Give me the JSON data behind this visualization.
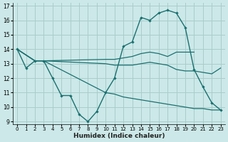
{
  "xlabel": "Humidex (Indice chaleur)",
  "background_color": "#cce8e8",
  "grid_color": "#aacccc",
  "line_color": "#1a7070",
  "xlim": [
    -0.5,
    23.5
  ],
  "ylim": [
    8.8,
    17.2
  ],
  "yticks": [
    9,
    10,
    11,
    12,
    13,
    14,
    15,
    16,
    17
  ],
  "xticks": [
    0,
    1,
    2,
    3,
    4,
    5,
    6,
    7,
    8,
    9,
    10,
    11,
    12,
    13,
    14,
    15,
    16,
    17,
    18,
    19,
    20,
    21,
    22,
    23
  ],
  "main_line": {
    "x": [
      0,
      1,
      2,
      3,
      4,
      5,
      6,
      7,
      8,
      9,
      10,
      11,
      12,
      13,
      14,
      15,
      16,
      17,
      18,
      19,
      20,
      21,
      22,
      23
    ],
    "y": [
      14.0,
      12.7,
      13.2,
      13.2,
      12.0,
      10.8,
      10.8,
      9.5,
      9.0,
      9.7,
      11.0,
      12.0,
      14.2,
      14.5,
      16.2,
      16.0,
      16.5,
      16.7,
      16.5,
      15.5,
      12.6,
      11.4,
      10.3,
      9.8
    ]
  },
  "smooth_line1": {
    "x": [
      0,
      2,
      3,
      10,
      11,
      12,
      13,
      14,
      15,
      16,
      17,
      18,
      19,
      20
    ],
    "y": [
      14.0,
      13.2,
      13.2,
      13.3,
      13.3,
      13.4,
      13.5,
      13.7,
      13.8,
      13.7,
      13.5,
      13.8,
      13.8,
      13.8
    ]
  },
  "smooth_line2": {
    "x": [
      0,
      2,
      3,
      10,
      11,
      12,
      13,
      14,
      15,
      16,
      17,
      18,
      19,
      20,
      21,
      22,
      23
    ],
    "y": [
      14.0,
      13.2,
      13.2,
      13.0,
      12.9,
      12.9,
      12.9,
      13.0,
      13.1,
      13.0,
      12.9,
      12.6,
      12.5,
      12.5,
      12.4,
      12.3,
      12.7
    ]
  },
  "smooth_line3": {
    "x": [
      0,
      2,
      3,
      10,
      11,
      12,
      13,
      14,
      15,
      16,
      17,
      18,
      19,
      20,
      21,
      22,
      23
    ],
    "y": [
      14.0,
      13.2,
      13.2,
      11.0,
      10.9,
      10.7,
      10.6,
      10.5,
      10.4,
      10.3,
      10.2,
      10.1,
      10.0,
      9.9,
      9.9,
      9.8,
      9.8
    ]
  }
}
